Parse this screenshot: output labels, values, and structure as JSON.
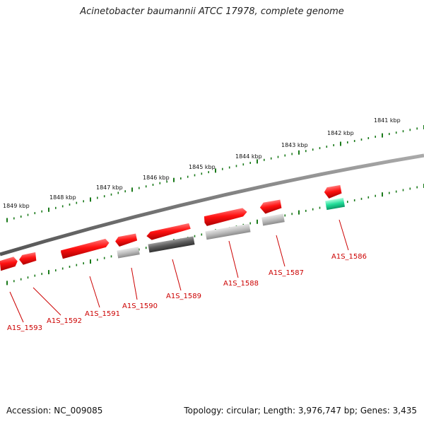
{
  "title": "Acinetobacter baumannii ATCC 17978, complete genome",
  "accession": "Accession: NC_009085",
  "topology": "Topology: circular; Length: 3,976,747 bp; Genes: 3,435",
  "scale_labels": [
    "1841 kbp",
    "1842 kbp",
    "1843 kbp",
    "1844 kbp",
    "1845 kbp",
    "1846 kbp",
    "1847 kbp",
    "1848 kbp",
    "1849 kbp"
  ],
  "genes": [
    {
      "id": "A1S_1586",
      "label": "A1S_1586",
      "strand": "forward",
      "color": "#ee1111",
      "companion_color": "#22dd99"
    },
    {
      "id": "A1S_1587",
      "label": "A1S_1587",
      "strand": "reverse",
      "color": "#ee1111",
      "companion_color": "#aaaaaa"
    },
    {
      "id": "A1S_1588",
      "label": "A1S_1588",
      "strand": "forward",
      "color": "#ee1111",
      "companion_color": "#aaaaaa"
    },
    {
      "id": "A1S_1589",
      "label": "A1S_1589",
      "strand": "reverse",
      "color": "#ee1111",
      "companion_color": "#555555"
    },
    {
      "id": "A1S_1590",
      "label": "A1S_1590",
      "strand": "reverse",
      "color": "#ee1111",
      "companion_color": "#aaaaaa"
    },
    {
      "id": "A1S_1591",
      "label": "A1S_1591",
      "strand": "forward",
      "color": "#ee1111",
      "companion_color": null
    },
    {
      "id": "A1S_1592",
      "label": "A1S_1592",
      "strand": "reverse",
      "color": "#ee1111",
      "companion_color": null
    },
    {
      "id": "A1S_1593",
      "label": "A1S_1593",
      "strand": "forward",
      "color": "#ee1111",
      "companion_color": null
    }
  ],
  "colors": {
    "gene": "#ee1111",
    "label": "#cc0000",
    "tick": "#1a7a1a",
    "backbone": "#777777"
  }
}
